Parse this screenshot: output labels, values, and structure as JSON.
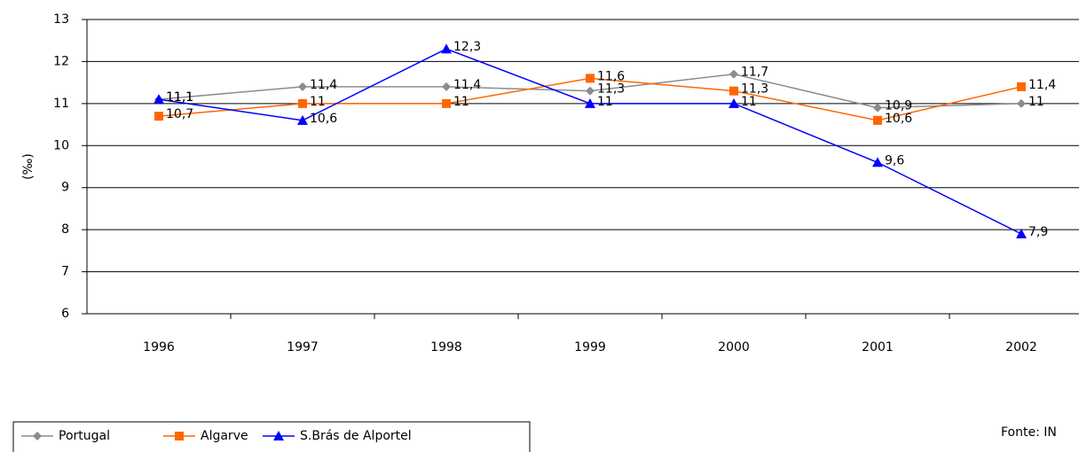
{
  "chart_data": {
    "type": "line",
    "categories": [
      "1996",
      "1997",
      "1998",
      "1999",
      "2000",
      "2001",
      "2002"
    ],
    "y_label": "(‰)",
    "ylim": [
      6,
      13
    ],
    "yticks": [
      6,
      7,
      8,
      9,
      10,
      11,
      12,
      13
    ],
    "grid": true,
    "series": [
      {
        "name": "Portugal",
        "color": "#8c8c8c",
        "marker": "diamond",
        "values": [
          11.1,
          11.4,
          11.4,
          11.3,
          11.7,
          10.9,
          11
        ],
        "value_labels": [
          "11,1",
          "11,4",
          "11,4",
          "11,3",
          "11,7",
          "10,9",
          "11"
        ]
      },
      {
        "name": "Algarve",
        "color": "#ff6600",
        "marker": "square",
        "values": [
          10.7,
          11,
          11,
          11.6,
          11.3,
          10.6,
          11.4
        ],
        "value_labels": [
          "10,7",
          "11",
          "11",
          "11,6",
          "11,3",
          "10,6",
          "11,4"
        ]
      },
      {
        "name": "S.Brás de Alportel",
        "color": "#0000ff",
        "marker": "triangle",
        "values": [
          11.1,
          10.6,
          12.3,
          11,
          11,
          9.6,
          7.9
        ],
        "value_labels": [
          "11,1",
          "10,6",
          "12,3",
          "11",
          "11",
          "9,6",
          "7,9"
        ]
      }
    ],
    "source": "Fonte: IN"
  }
}
